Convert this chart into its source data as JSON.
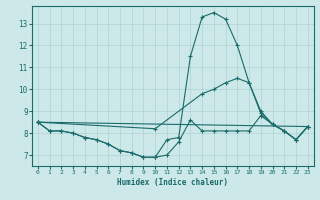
{
  "xlabel": "Humidex (Indice chaleur)",
  "bg_color": "#cce8e8",
  "line_color": "#1a6b6b",
  "xlim": [
    -0.5,
    23.5
  ],
  "ylim": [
    6.5,
    13.8
  ],
  "yticks": [
    7,
    8,
    9,
    10,
    11,
    12,
    13
  ],
  "xticks": [
    0,
    1,
    2,
    3,
    4,
    5,
    6,
    7,
    8,
    9,
    10,
    11,
    12,
    13,
    14,
    15,
    16,
    17,
    18,
    19,
    20,
    21,
    22,
    23
  ],
  "lines": [
    {
      "x": [
        0,
        1,
        2,
        3,
        4,
        5,
        6,
        7,
        8,
        9,
        10,
        11,
        12,
        13,
        14,
        15,
        16,
        17,
        18,
        19,
        20,
        21,
        22,
        23
      ],
      "y": [
        8.5,
        8.1,
        8.1,
        8.0,
        7.8,
        7.7,
        7.5,
        7.2,
        7.1,
        6.9,
        6.9,
        7.0,
        7.6,
        8.6,
        8.1,
        8.1,
        8.1,
        8.1,
        8.1,
        8.8,
        8.4,
        8.1,
        7.7,
        8.3
      ]
    },
    {
      "x": [
        0,
        1,
        2,
        3,
        4,
        5,
        6,
        7,
        8,
        9,
        10,
        11,
        12,
        13,
        14,
        15,
        16,
        17,
        18,
        19,
        20,
        21,
        22,
        23
      ],
      "y": [
        8.5,
        8.1,
        8.1,
        8.0,
        7.8,
        7.7,
        7.5,
        7.2,
        7.1,
        6.9,
        6.9,
        7.7,
        7.8,
        11.5,
        13.3,
        13.5,
        13.2,
        12.0,
        10.3,
        9.0,
        8.4,
        8.1,
        7.7,
        8.3
      ]
    },
    {
      "x": [
        0,
        23
      ],
      "y": [
        8.5,
        8.3
      ]
    },
    {
      "x": [
        0,
        10,
        14,
        15,
        16,
        17,
        18,
        19,
        20,
        21,
        22,
        23
      ],
      "y": [
        8.5,
        8.2,
        9.8,
        10.0,
        10.3,
        10.5,
        10.3,
        8.9,
        8.4,
        8.1,
        7.7,
        8.3
      ]
    }
  ]
}
